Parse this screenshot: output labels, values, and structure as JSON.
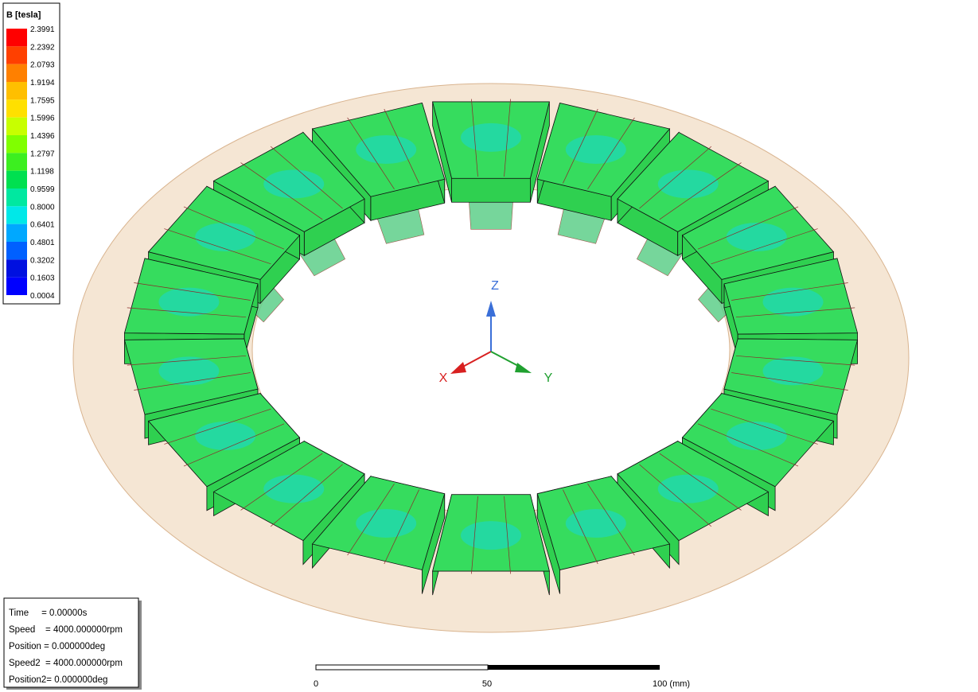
{
  "legend": {
    "title": "B [tesla]",
    "labels": [
      "2.3991",
      "2.2392",
      "2.0793",
      "1.9194",
      "1.7595",
      "1.5996",
      "1.4396",
      "1.2797",
      "1.1198",
      "0.9599",
      "0.8000",
      "0.6401",
      "0.4801",
      "0.3202",
      "0.1603",
      "0.0004"
    ]
  },
  "axes": {
    "z": "Z",
    "x": "X",
    "y": "Y"
  },
  "info": {
    "lines": [
      "Time     = 0.00000s",
      "Speed    = 4000.000000rpm",
      "Position = 0.000000deg",
      "Speed2  = 4000.000000rpm",
      "Position2= 0.000000deg"
    ]
  },
  "scale_bar": {
    "labels": [
      "0",
      "50",
      "100 (mm)"
    ]
  }
}
